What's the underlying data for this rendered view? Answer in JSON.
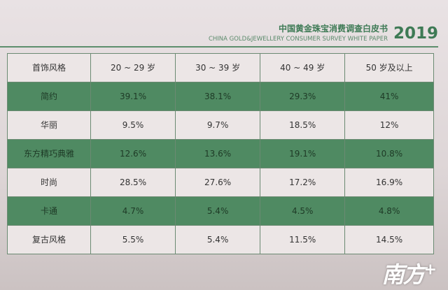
{
  "header": {
    "title_cn": "中国黄金珠宝消费调查白皮书",
    "title_en": "CHINA GOLD&JEWELLERY CONSUMER SURVEY WHITE PAPER",
    "year": "2019",
    "accent": "#4f8a62"
  },
  "table": {
    "columns": [
      "首饰风格",
      "20 ~ 29 岁",
      "30 ~ 39 岁",
      "40 ~ 49 岁",
      "50 岁及以上"
    ],
    "rows": [
      [
        "简约",
        "39.1%",
        "38.1%",
        "29.3%",
        "41%"
      ],
      [
        "华丽",
        "9.5%",
        "9.7%",
        "18.5%",
        "12%"
      ],
      [
        "东方精巧典雅",
        "12.6%",
        "13.6%",
        "19.1%",
        "10.8%"
      ],
      [
        "时尚",
        "28.5%",
        "27.6%",
        "17.2%",
        "16.9%"
      ],
      [
        "卡通",
        "4.7%",
        "5.4%",
        "4.5%",
        "4.8%"
      ],
      [
        "复古风格",
        "5.5%",
        "5.4%",
        "11.5%",
        "14.5%"
      ]
    ]
  },
  "watermark": {
    "text": "南方+"
  }
}
